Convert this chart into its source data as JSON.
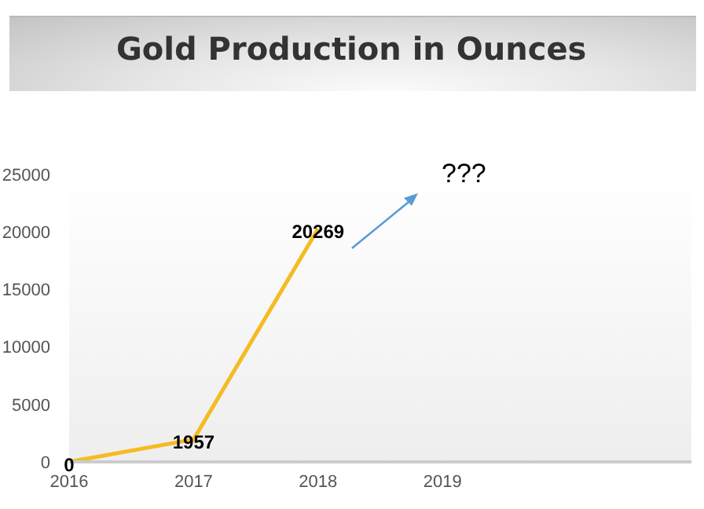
{
  "chart_data": {
    "type": "line",
    "title": "Gold Production in Ounces",
    "categories": [
      "2016",
      "2017",
      "2018",
      "2019",
      null,
      null
    ],
    "series": [
      {
        "color": "#f5bb22",
        "values": [
          0,
          1957,
          20269,
          null,
          null,
          null
        ]
      }
    ],
    "ylim": [
      0,
      25000
    ],
    "yticks": [
      0,
      5000,
      10000,
      15000,
      20000,
      25000
    ],
    "grid": false,
    "legend": false,
    "marker": "none",
    "line_style": "solid",
    "data_labels": true,
    "annotations": [
      "???"
    ]
  }
}
